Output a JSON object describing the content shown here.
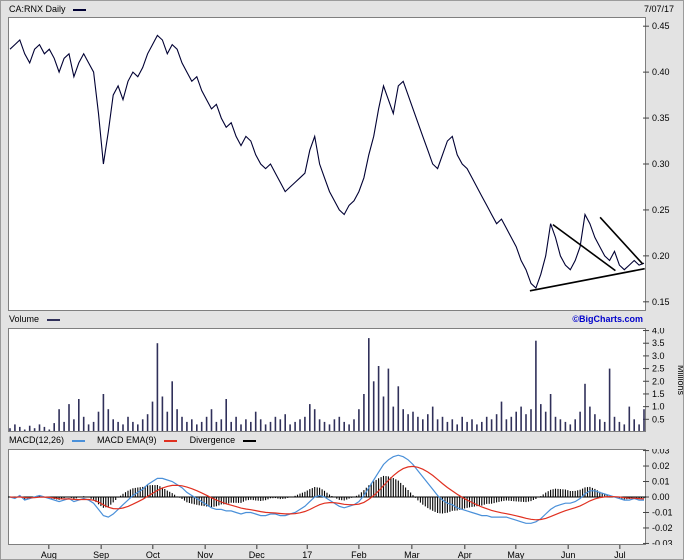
{
  "header": {
    "symbol_label": "CA:RNX Daily",
    "date_label": "7/07/17"
  },
  "volume_header": {
    "label": "Volume",
    "brand": "©BigCharts.com"
  },
  "macd_header": {
    "macd_label": "MACD(12,26)",
    "ema_label": "MACD EMA(9)",
    "divergence_label": "Divergence"
  },
  "colors": {
    "price_line": "#000033",
    "trendline": "#000000",
    "volume_bar": "#30305a",
    "macd_line": "#4a90d9",
    "ema_line": "#e03020",
    "divergence_bar": "#000000",
    "brand_blue": "#0000cc",
    "panel_border": "#7f7f7f",
    "background": "#e3e3e3",
    "tick_color": "#444444"
  },
  "chart_data": [
    {
      "type": "line",
      "title": "CA:RNX Daily price",
      "ylabel": "",
      "ylim": [
        0.14,
        0.46
      ],
      "yticks": [
        0.15,
        0.2,
        0.25,
        0.3,
        0.35,
        0.4,
        0.45
      ],
      "x_months": [
        "Aug",
        "Sep",
        "Oct",
        "Nov",
        "Dec",
        "17",
        "Feb",
        "Mar",
        "Apr",
        "May",
        "Jun",
        "Jul"
      ],
      "month_positions": [
        0.064,
        0.146,
        0.227,
        0.309,
        0.39,
        0.469,
        0.55,
        0.633,
        0.716,
        0.796,
        0.878,
        0.959
      ],
      "prices": [
        0.425,
        0.43,
        0.435,
        0.42,
        0.41,
        0.425,
        0.43,
        0.42,
        0.425,
        0.415,
        0.4,
        0.415,
        0.42,
        0.395,
        0.41,
        0.42,
        0.41,
        0.4,
        0.355,
        0.3,
        0.335,
        0.375,
        0.385,
        0.37,
        0.39,
        0.4,
        0.395,
        0.405,
        0.42,
        0.43,
        0.44,
        0.435,
        0.42,
        0.43,
        0.425,
        0.41,
        0.4,
        0.39,
        0.395,
        0.38,
        0.37,
        0.36,
        0.365,
        0.35,
        0.34,
        0.345,
        0.33,
        0.32,
        0.33,
        0.325,
        0.31,
        0.3,
        0.295,
        0.3,
        0.29,
        0.28,
        0.27,
        0.275,
        0.28,
        0.285,
        0.29,
        0.315,
        0.33,
        0.3,
        0.285,
        0.27,
        0.26,
        0.25,
        0.245,
        0.255,
        0.26,
        0.27,
        0.285,
        0.31,
        0.33,
        0.36,
        0.385,
        0.37,
        0.355,
        0.385,
        0.39,
        0.375,
        0.36,
        0.345,
        0.33,
        0.315,
        0.3,
        0.295,
        0.31,
        0.325,
        0.33,
        0.31,
        0.3,
        0.295,
        0.285,
        0.275,
        0.265,
        0.255,
        0.245,
        0.235,
        0.24,
        0.23,
        0.22,
        0.21,
        0.195,
        0.185,
        0.17,
        0.165,
        0.18,
        0.2,
        0.235,
        0.22,
        0.2,
        0.19,
        0.185,
        0.195,
        0.21,
        0.245,
        0.235,
        0.22,
        0.21,
        0.2,
        0.195,
        0.205,
        0.19,
        0.185,
        0.19,
        0.195,
        0.19,
        0.192
      ],
      "trendlines": [
        {
          "x1": 0.854,
          "p1": 0.234,
          "x2": 0.952,
          "p2": 0.184
        },
        {
          "x1": 0.928,
          "p1": 0.242,
          "x2": 0.995,
          "p2": 0.191
        },
        {
          "x1": 0.818,
          "p1": 0.162,
          "x2": 0.998,
          "p2": 0.186
        }
      ]
    },
    {
      "type": "bar",
      "title": "Volume",
      "ylabel": "Millions",
      "ylim": [
        0,
        4.1
      ],
      "yticks": [
        0.5,
        1.0,
        1.5,
        2.0,
        2.5,
        3.0,
        3.5,
        4.0
      ],
      "values": [
        0.15,
        0.3,
        0.2,
        0.1,
        0.25,
        0.15,
        0.3,
        0.2,
        0.1,
        0.35,
        0.9,
        0.4,
        1.1,
        0.5,
        1.3,
        0.6,
        0.3,
        0.4,
        0.8,
        1.5,
        0.9,
        0.5,
        0.4,
        0.3,
        0.6,
        0.4,
        0.3,
        0.5,
        0.7,
        1.2,
        3.5,
        1.4,
        0.8,
        2.0,
        0.9,
        0.6,
        0.4,
        0.5,
        0.3,
        0.4,
        0.6,
        0.9,
        0.4,
        0.5,
        1.3,
        0.4,
        0.6,
        0.3,
        0.5,
        0.4,
        0.8,
        0.5,
        0.3,
        0.4,
        0.6,
        0.5,
        0.7,
        0.3,
        0.4,
        0.5,
        0.6,
        1.1,
        0.9,
        0.5,
        0.4,
        0.3,
        0.5,
        0.6,
        0.4,
        0.3,
        0.5,
        0.9,
        1.5,
        3.7,
        2.0,
        2.6,
        1.4,
        2.5,
        1.0,
        1.8,
        0.9,
        0.7,
        0.8,
        0.6,
        0.5,
        0.7,
        1.0,
        0.5,
        0.6,
        0.4,
        0.5,
        0.3,
        0.6,
        0.4,
        0.5,
        0.3,
        0.4,
        0.6,
        0.5,
        0.7,
        1.2,
        0.5,
        0.6,
        0.8,
        1.0,
        0.7,
        0.9,
        3.6,
        1.1,
        0.8,
        1.5,
        0.6,
        0.5,
        0.4,
        0.3,
        0.5,
        0.8,
        1.9,
        1.0,
        0.7,
        0.5,
        0.4,
        2.5,
        0.6,
        0.4,
        0.3,
        1.0,
        0.5,
        0.3,
        0.9
      ]
    },
    {
      "type": "line+bar",
      "title": "MACD(12,26)",
      "ylabel": "",
      "ylim": [
        -0.031,
        0.031
      ],
      "yticks": [
        -0.03,
        -0.02,
        -0.01,
        0.0,
        0.01,
        0.02,
        0.03
      ],
      "signal_ema_period": 9,
      "macd": [
        0.0,
        -0.001,
        0.001,
        -0.002,
        -0.001,
        0.0,
        0.001,
        0.0,
        -0.001,
        -0.002,
        -0.003,
        -0.002,
        -0.001,
        -0.003,
        -0.002,
        -0.001,
        -0.002,
        -0.004,
        -0.008,
        -0.012,
        -0.013,
        -0.011,
        -0.008,
        -0.005,
        -0.002,
        0.001,
        0.003,
        0.005,
        0.008,
        0.01,
        0.012,
        0.012,
        0.011,
        0.01,
        0.008,
        0.006,
        0.003,
        0.001,
        -0.001,
        -0.003,
        -0.005,
        -0.007,
        -0.008,
        -0.008,
        -0.009,
        -0.009,
        -0.01,
        -0.011,
        -0.01,
        -0.01,
        -0.011,
        -0.012,
        -0.012,
        -0.011,
        -0.011,
        -0.012,
        -0.012,
        -0.011,
        -0.01,
        -0.008,
        -0.006,
        -0.003,
        0.0,
        0.001,
        0.0,
        -0.002,
        -0.004,
        -0.006,
        -0.007,
        -0.006,
        -0.005,
        -0.003,
        0.001,
        0.006,
        0.011,
        0.016,
        0.021,
        0.024,
        0.026,
        0.027,
        0.026,
        0.024,
        0.021,
        0.017,
        0.013,
        0.009,
        0.005,
        0.001,
        -0.002,
        -0.004,
        -0.005,
        -0.007,
        -0.008,
        -0.009,
        -0.01,
        -0.011,
        -0.012,
        -0.012,
        -0.013,
        -0.013,
        -0.013,
        -0.013,
        -0.014,
        -0.015,
        -0.016,
        -0.017,
        -0.017,
        -0.016,
        -0.014,
        -0.011,
        -0.008,
        -0.006,
        -0.005,
        -0.004,
        -0.004,
        -0.003,
        -0.001,
        0.002,
        0.004,
        0.004,
        0.003,
        0.002,
        0.001,
        0.0,
        -0.001,
        -0.002,
        -0.002,
        -0.001,
        -0.002,
        -0.002
      ]
    }
  ]
}
